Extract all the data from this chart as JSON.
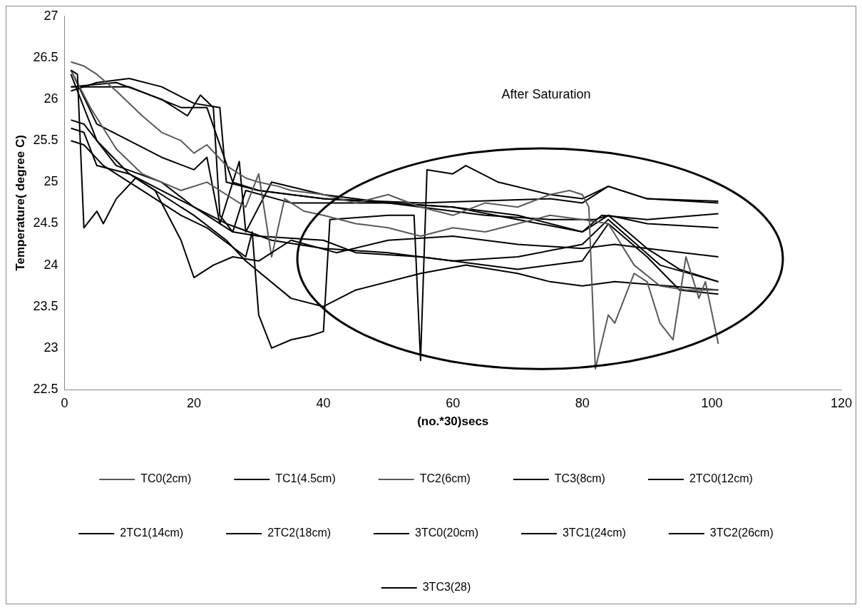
{
  "chart_data": {
    "type": "line",
    "xlabel": "(no.*30)secs",
    "ylabel": "Temperature( degree C)",
    "xlim": [
      0,
      120
    ],
    "xticks": [
      0,
      20,
      40,
      60,
      80,
      100,
      120
    ],
    "ylim": [
      22.5,
      27
    ],
    "yticks": [
      22.5,
      23,
      23.5,
      24,
      24.5,
      25,
      25.5,
      26,
      26.5,
      27
    ],
    "grid": false,
    "legend": "bottom",
    "marker": "none",
    "line_style": "solid",
    "annotations": [
      "After Saturation"
    ],
    "series": [
      {
        "name": "TC0(2cm)",
        "color": "#595959",
        "x": [
          1,
          3,
          5,
          8,
          12,
          15,
          18,
          20,
          22,
          25,
          28,
          30,
          33,
          35,
          40,
          45,
          50,
          55,
          60,
          65,
          70,
          75,
          78,
          80,
          81,
          82,
          84,
          85,
          88,
          90,
          92,
          94,
          96,
          98,
          99,
          101
        ],
        "values": [
          26.45,
          26.4,
          26.3,
          26.1,
          25.8,
          25.6,
          25.5,
          25.35,
          25.45,
          25.2,
          25.05,
          25.0,
          24.95,
          24.9,
          24.85,
          24.75,
          24.85,
          24.7,
          24.6,
          24.75,
          24.7,
          24.85,
          24.9,
          24.85,
          24.7,
          22.75,
          23.4,
          23.3,
          23.9,
          23.8,
          23.3,
          23.1,
          24.1,
          23.6,
          23.8,
          23.05
        ]
      },
      {
        "name": "TC1(4.5cm)",
        "color": "#000000",
        "x": [
          1,
          2,
          3,
          5,
          6,
          8,
          11,
          14,
          18,
          20,
          23,
          26,
          30,
          35,
          42,
          50,
          60,
          70,
          80,
          85,
          90,
          101
        ],
        "values": [
          26.35,
          26.3,
          24.45,
          24.65,
          24.5,
          24.8,
          25.05,
          24.9,
          24.3,
          23.85,
          24.0,
          24.1,
          24.05,
          24.3,
          24.15,
          24.3,
          24.35,
          24.25,
          24.2,
          24.25,
          24.2,
          24.1
        ]
      },
      {
        "name": "TC2(6cm)",
        "color": "#595959",
        "x": [
          1,
          4,
          8,
          12,
          15,
          18,
          22,
          25,
          28,
          30,
          32,
          34,
          37,
          40,
          45,
          50,
          55,
          60,
          65,
          70,
          75,
          80,
          84,
          88,
          92,
          96,
          101
        ],
        "values": [
          26.35,
          25.9,
          25.4,
          25.1,
          25.0,
          24.9,
          25.0,
          24.85,
          24.7,
          25.1,
          24.1,
          24.8,
          24.65,
          24.6,
          24.5,
          24.45,
          24.35,
          24.45,
          24.4,
          24.5,
          24.6,
          24.55,
          24.5,
          24.0,
          23.75,
          23.7,
          23.7
        ]
      },
      {
        "name": "TC3(8cm)",
        "color": "#000000",
        "x": [
          1,
          5,
          10,
          15,
          20,
          24,
          25,
          30,
          40,
          50,
          60,
          70,
          80,
          84,
          90,
          101
        ],
        "values": [
          26.1,
          26.2,
          26.25,
          26.15,
          25.95,
          25.9,
          25.0,
          24.9,
          24.8,
          24.75,
          24.7,
          24.6,
          24.4,
          24.6,
          24.5,
          24.45
        ]
      },
      {
        "name": "2TC0(12cm)",
        "color": "#000000",
        "x": [
          1,
          8,
          15,
          19,
          21,
          23,
          24,
          26,
          28,
          35,
          50,
          60,
          70,
          80,
          83,
          90,
          101
        ],
        "values": [
          26.15,
          26.2,
          26.0,
          25.8,
          26.05,
          25.9,
          24.6,
          24.4,
          24.9,
          24.75,
          24.75,
          24.7,
          24.55,
          24.4,
          24.6,
          24.55,
          24.62
        ]
      },
      {
        "name": "2TC1(14cm)",
        "color": "#000000",
        "x": [
          1,
          10,
          18,
          22,
          26,
          30,
          40,
          55,
          75,
          80,
          84,
          90,
          101
        ],
        "values": [
          26.15,
          26.15,
          25.9,
          25.9,
          25.0,
          24.9,
          24.8,
          24.75,
          24.8,
          24.75,
          24.95,
          24.8,
          24.77
        ]
      },
      {
        "name": "2TC2(18cm)",
        "color": "#000000",
        "x": [
          1,
          3,
          8,
          15,
          20,
          25,
          32,
          40,
          50,
          60,
          70,
          80,
          84,
          92,
          101
        ],
        "values": [
          25.75,
          25.7,
          25.2,
          25.0,
          24.7,
          24.5,
          24.3,
          24.2,
          24.15,
          24.05,
          24.1,
          24.25,
          24.55,
          24.0,
          23.8
        ]
      },
      {
        "name": "3TC0(20cm)",
        "color": "#000000",
        "x": [
          1,
          3,
          6,
          12,
          18,
          22,
          28,
          29,
          30,
          32,
          35,
          38,
          40,
          41,
          50,
          54,
          55,
          56,
          60,
          62,
          67,
          75,
          80,
          84,
          90,
          101
        ],
        "values": [
          25.5,
          25.45,
          25.2,
          24.9,
          24.6,
          24.45,
          24.1,
          24.4,
          23.4,
          23.0,
          23.1,
          23.15,
          23.2,
          24.55,
          24.6,
          24.6,
          22.85,
          25.15,
          25.1,
          25.2,
          25.0,
          24.85,
          24.8,
          24.95,
          24.8,
          24.75
        ]
      },
      {
        "name": "3TC1(24cm)",
        "color": "#000000",
        "x": [
          1,
          3,
          5,
          10,
          20,
          26,
          30,
          40,
          45,
          55,
          60,
          70,
          80,
          84,
          90,
          95,
          101
        ],
        "values": [
          25.65,
          25.6,
          25.2,
          25.1,
          24.7,
          24.4,
          24.35,
          24.3,
          24.15,
          24.1,
          24.05,
          23.95,
          24.05,
          24.5,
          24.1,
          23.7,
          23.65
        ]
      },
      {
        "name": "3TC2(26cm)",
        "color": "#000000",
        "x": [
          1,
          5,
          10,
          15,
          20,
          25,
          28,
          35,
          40,
          45,
          55,
          62,
          70,
          75,
          80,
          85,
          101
        ],
        "values": [
          26.3,
          25.5,
          25.1,
          24.85,
          24.6,
          24.3,
          24.05,
          23.6,
          23.5,
          23.7,
          23.9,
          24.0,
          23.9,
          23.8,
          23.75,
          23.8,
          23.7
        ]
      },
      {
        "name": "3TC3(28)",
        "color": "#000000",
        "x": [
          1,
          5,
          10,
          15,
          20,
          22,
          24,
          27,
          28,
          32,
          40,
          55,
          65,
          75,
          82,
          84,
          90,
          95,
          101
        ],
        "values": [
          26.35,
          25.7,
          25.5,
          25.3,
          25.15,
          25.3,
          24.5,
          25.25,
          24.4,
          25.0,
          24.85,
          24.7,
          24.6,
          24.55,
          24.55,
          24.6,
          24.2,
          23.95,
          23.8
        ]
      }
    ]
  }
}
